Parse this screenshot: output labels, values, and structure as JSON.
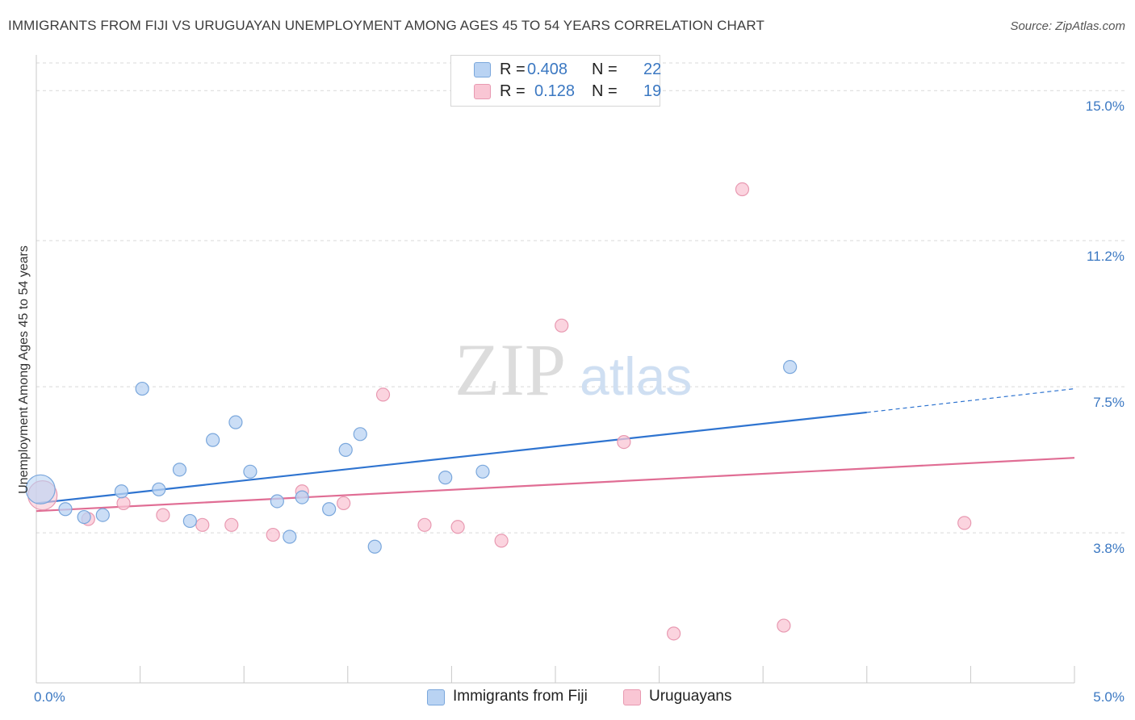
{
  "header": {
    "title": "IMMIGRANTS FROM FIJI VS URUGUAYAN UNEMPLOYMENT AMONG AGES 45 TO 54 YEARS CORRELATION CHART",
    "source": "Source: ZipAtlas.com"
  },
  "watermark": {
    "zip": "ZIP",
    "atlas": "atlas"
  },
  "legend": {
    "r_label": "R =",
    "n_label": "N =",
    "series1": {
      "r": "0.408",
      "n": "22"
    },
    "series2": {
      "r": "0.128",
      "n": "19"
    }
  },
  "bottom_legend": {
    "series1": "Immigrants from Fiji",
    "series2": "Uruguayans"
  },
  "colors": {
    "fiji_fill": "#b9d3f3",
    "fiji_stroke": "#7aa7dc",
    "fiji_line": "#2f74d0",
    "uru_fill": "#f9c6d4",
    "uru_stroke": "#e899b1",
    "uru_line": "#e06d94",
    "axis_label": "#3b78c2"
  },
  "chart_data": {
    "type": "scatter",
    "title": "IMMIGRANTS FROM FIJI VS URUGUAYAN UNEMPLOYMENT AMONG AGES 45 TO 54 YEARS CORRELATION CHART",
    "xlabel": "",
    "ylabel": "Unemployment Among Ages 45 to 54 years",
    "xlim": [
      0.0,
      5.0
    ],
    "ylim": [
      0.0,
      15.7
    ],
    "x_tick_labels": [
      "0.0%",
      "5.0%"
    ],
    "y_tick_labels": [
      {
        "value": 15.0,
        "label": "15.0%"
      },
      {
        "value": 11.2,
        "label": "11.2%"
      },
      {
        "value": 7.5,
        "label": "7.5%"
      },
      {
        "value": 3.8,
        "label": "3.8%"
      }
    ],
    "series": [
      {
        "name": "Immigrants from Fiji",
        "r": 0.408,
        "n": 22,
        "points": [
          {
            "x": 0.02,
            "y": 4.9,
            "big": true
          },
          {
            "x": 0.14,
            "y": 4.4
          },
          {
            "x": 0.23,
            "y": 4.2
          },
          {
            "x": 0.32,
            "y": 4.25
          },
          {
            "x": 0.41,
            "y": 4.85
          },
          {
            "x": 0.51,
            "y": 7.45
          },
          {
            "x": 0.59,
            "y": 4.9
          },
          {
            "x": 0.69,
            "y": 5.4
          },
          {
            "x": 0.74,
            "y": 4.1
          },
          {
            "x": 0.85,
            "y": 6.15
          },
          {
            "x": 0.96,
            "y": 6.6
          },
          {
            "x": 1.03,
            "y": 5.35
          },
          {
            "x": 1.16,
            "y": 4.6
          },
          {
            "x": 1.22,
            "y": 3.7
          },
          {
            "x": 1.28,
            "y": 4.7
          },
          {
            "x": 1.41,
            "y": 4.4
          },
          {
            "x": 1.49,
            "y": 5.9
          },
          {
            "x": 1.56,
            "y": 6.3
          },
          {
            "x": 1.63,
            "y": 3.45
          },
          {
            "x": 1.97,
            "y": 5.2
          },
          {
            "x": 2.15,
            "y": 5.35
          },
          {
            "x": 3.63,
            "y": 8.0
          }
        ],
        "trend": {
          "x0": 0.0,
          "y0": 4.55,
          "x1": 4.0,
          "y1": 6.85,
          "dash_to_x": 5.0,
          "dash_to_y": 7.45
        }
      },
      {
        "name": "Uruguayans",
        "r": 0.128,
        "n": 19,
        "points": [
          {
            "x": 0.03,
            "y": 4.75,
            "big": true
          },
          {
            "x": 0.25,
            "y": 4.15
          },
          {
            "x": 0.42,
            "y": 4.55
          },
          {
            "x": 0.61,
            "y": 4.25
          },
          {
            "x": 0.8,
            "y": 4.0
          },
          {
            "x": 0.94,
            "y": 4.0
          },
          {
            "x": 1.14,
            "y": 3.75
          },
          {
            "x": 1.28,
            "y": 4.85
          },
          {
            "x": 1.48,
            "y": 4.55
          },
          {
            "x": 1.67,
            "y": 7.3
          },
          {
            "x": 1.87,
            "y": 4.0
          },
          {
            "x": 2.03,
            "y": 3.95
          },
          {
            "x": 2.24,
            "y": 3.6
          },
          {
            "x": 2.53,
            "y": 9.05
          },
          {
            "x": 2.83,
            "y": 6.1
          },
          {
            "x": 3.07,
            "y": 1.25
          },
          {
            "x": 3.4,
            "y": 12.5
          },
          {
            "x": 3.6,
            "y": 1.45
          },
          {
            "x": 4.47,
            "y": 4.05
          }
        ],
        "trend": {
          "x0": 0.0,
          "y0": 4.35,
          "x1": 5.0,
          "y1": 5.7
        }
      }
    ]
  }
}
